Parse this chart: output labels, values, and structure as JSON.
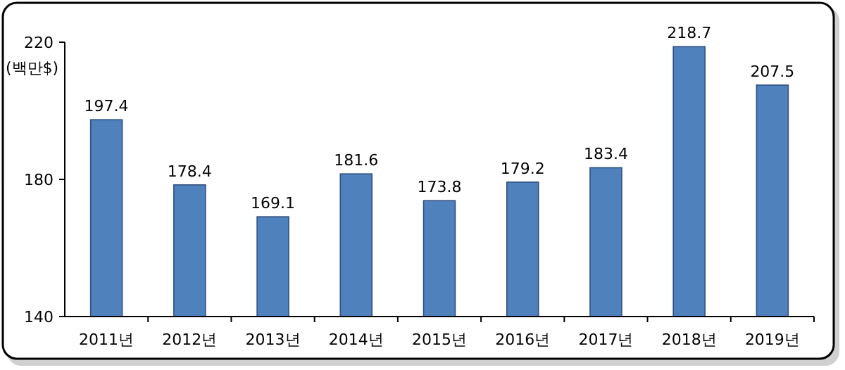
{
  "chart_data": {
    "type": "bar",
    "ylabel": "(백만$)",
    "categories": [
      "2011년",
      "2012년",
      "2013년",
      "2014년",
      "2015년",
      "2016년",
      "2017년",
      "2018년",
      "2019년"
    ],
    "values": [
      197.4,
      178.4,
      169.1,
      181.6,
      173.8,
      179.2,
      183.4,
      218.7,
      207.5
    ],
    "color": "#4f81bd",
    "ylim": [
      140,
      220
    ],
    "yticks": [
      140,
      180,
      220
    ],
    "data_labels": true
  }
}
